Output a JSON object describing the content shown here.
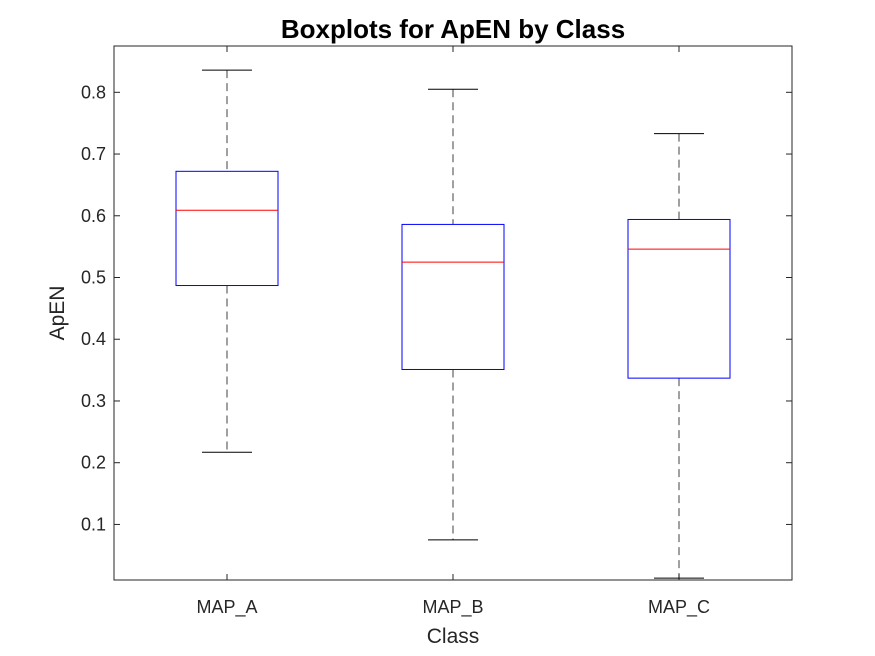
{
  "chart_data": {
    "type": "boxplot",
    "title": "Boxplots for ApEN by Class",
    "xlabel": "Class",
    "ylabel": "ApEN",
    "categories": [
      "MAP_A",
      "MAP_B",
      "MAP_C"
    ],
    "ylim": [
      0.01,
      0.875
    ],
    "yticks": [
      0.1,
      0.2,
      0.3,
      0.4,
      0.5,
      0.6,
      0.7,
      0.8
    ],
    "grid": false,
    "boxes": [
      {
        "category": "MAP_A",
        "min": 0.217,
        "q1": 0.487,
        "median": 0.609,
        "q3": 0.672,
        "max": 0.836
      },
      {
        "category": "MAP_B",
        "min": 0.075,
        "q1": 0.351,
        "median": 0.525,
        "q3": 0.586,
        "max": 0.805
      },
      {
        "category": "MAP_C",
        "min": 0.013,
        "q1": 0.337,
        "median": 0.546,
        "q3": 0.594,
        "max": 0.733
      }
    ],
    "colors": {
      "box": "#0000ff",
      "median": "#ff0000",
      "whisker": "#000000",
      "axes": "#262626"
    }
  }
}
